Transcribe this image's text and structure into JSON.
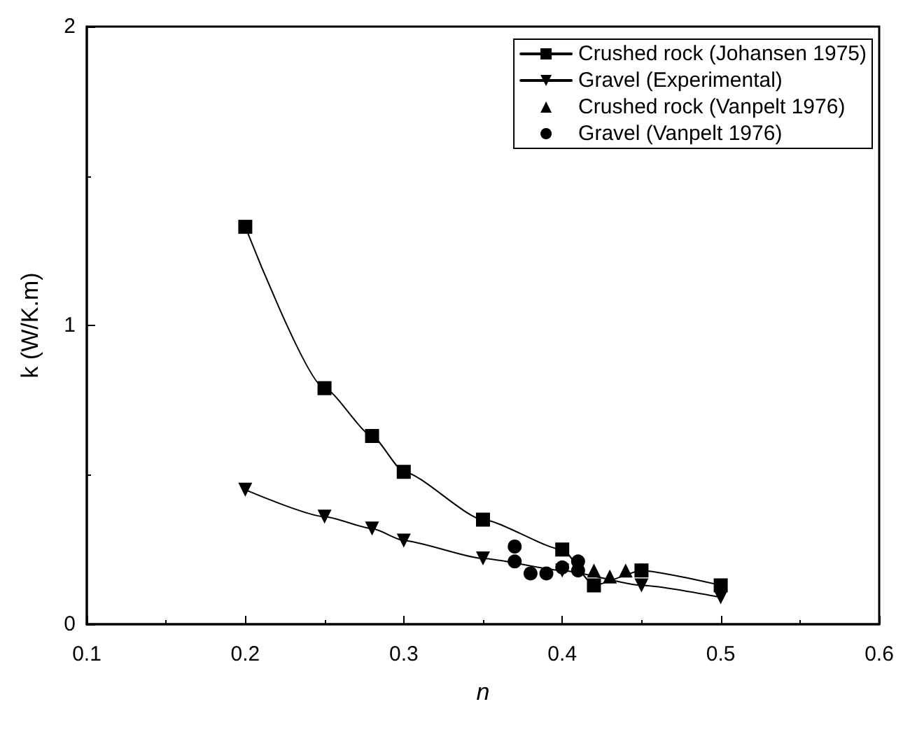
{
  "chart_data": {
    "type": "line",
    "xlabel": "n",
    "ylabel": "k (W/K.m)",
    "xlim": [
      0.1,
      0.6
    ],
    "xticks": [
      0.1,
      0.2,
      0.3,
      0.4,
      0.5,
      0.6
    ],
    "ylim": [
      0,
      2
    ],
    "yticks": [
      0,
      1,
      2
    ],
    "grid": false,
    "legend": "top right",
    "series": [
      {
        "name": "Crushed rock (Johansen 1975)",
        "marker": "square",
        "color": "#000000",
        "x": [
          0.2,
          0.25,
          0.28,
          0.3,
          0.35,
          0.4,
          0.42,
          0.45,
          0.5
        ],
        "values": [
          1.33,
          0.79,
          0.63,
          0.51,
          0.35,
          0.25,
          0.13,
          0.18,
          0.13
        ]
      },
      {
        "name": "Gravel (Experimental)",
        "marker": "triangle-down",
        "color": "#000000",
        "x": [
          0.2,
          0.25,
          0.28,
          0.3,
          0.35,
          0.4,
          0.45,
          0.5
        ],
        "values": [
          0.45,
          0.36,
          0.32,
          0.28,
          0.22,
          0.18,
          0.13,
          0.09
        ]
      },
      {
        "name": "Crushed rock (Vanpelt 1976)",
        "type": "scatter",
        "marker": "triangle",
        "color": "#000000",
        "x": [
          0.42,
          0.43,
          0.44
        ],
        "values": [
          0.18,
          0.16,
          0.18
        ]
      },
      {
        "name": "Gravel (Vanpelt 1976)",
        "type": "scatter",
        "marker": "circle",
        "color": "#000000",
        "x": [
          0.37,
          0.37,
          0.38,
          0.39,
          0.4,
          0.41,
          0.41
        ],
        "values": [
          0.26,
          0.21,
          0.17,
          0.17,
          0.19,
          0.21,
          0.18
        ]
      }
    ]
  }
}
